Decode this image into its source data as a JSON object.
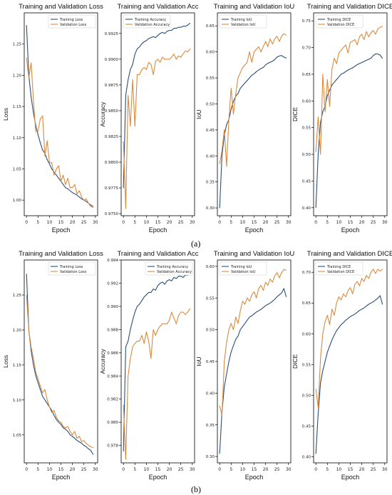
{
  "figure_labels": [
    "(a)",
    "(b)"
  ],
  "colors": {
    "train": "#2b4f7a",
    "val": "#dc8a3c",
    "axis": "#000000"
  },
  "chart_data": [
    {
      "type": "line",
      "row": 0,
      "col": 0,
      "title": "Training and Validation Loss",
      "xlabel": "Epoch",
      "ylabel": "Loss",
      "xlim": [
        -1,
        31
      ],
      "ylim": [
        0.975,
        1.3
      ],
      "xticks": [
        0,
        5,
        10,
        15,
        20,
        25,
        30
      ],
      "yticks": [
        1.0,
        1.05,
        1.1,
        1.15,
        1.2,
        1.25
      ],
      "yticklabels": [
        "1.00",
        "1.05",
        "1.10",
        "1.15",
        "1.20",
        "1.25"
      ],
      "legend": "top-right",
      "x": [
        0,
        1,
        2,
        3,
        4,
        5,
        6,
        7,
        8,
        9,
        10,
        11,
        12,
        13,
        14,
        15,
        16,
        17,
        18,
        19,
        20,
        21,
        22,
        23,
        24,
        25,
        26,
        27,
        28,
        29
      ],
      "series": [
        {
          "name": "Training Loss",
          "values": [
            1.28,
            1.2,
            1.165,
            1.14,
            1.12,
            1.105,
            1.092,
            1.08,
            1.075,
            1.065,
            1.058,
            1.05,
            1.045,
            1.04,
            1.035,
            1.03,
            1.025,
            1.02,
            1.018,
            1.015,
            1.012,
            1.01,
            1.008,
            1.005,
            1.002,
            1.0,
            0.998,
            0.995,
            0.992,
            0.99
          ]
        },
        {
          "name": "Validation Loss",
          "values": [
            1.228,
            1.195,
            1.22,
            1.16,
            1.11,
            1.11,
            1.13,
            1.135,
            1.07,
            1.095,
            1.06,
            1.06,
            1.04,
            1.05,
            1.055,
            1.03,
            1.04,
            1.025,
            1.035,
            1.02,
            1.02,
            1.025,
            1.01,
            1.015,
            1.005,
            1.0,
            1.002,
            0.995,
            0.99,
            0.988
          ]
        }
      ]
    },
    {
      "type": "line",
      "row": 0,
      "col": 1,
      "title": "Training and Validation Acc",
      "xlabel": "Epoch",
      "ylabel": "Accuracy",
      "xlim": [
        -1,
        31
      ],
      "ylim": [
        0.9748,
        0.9945
      ],
      "xticks": [
        0,
        5,
        10,
        15,
        20,
        25,
        30
      ],
      "yticks": [
        0.975,
        0.9775,
        0.98,
        0.9825,
        0.985,
        0.9875,
        0.99,
        0.9925
      ],
      "yticklabels": [
        "0.9750",
        "0.9775",
        "0.9800",
        "0.9825",
        "0.9850",
        "0.9875",
        "0.9900",
        "0.9925"
      ],
      "legend": "top-left",
      "x": [
        0,
        1,
        2,
        3,
        4,
        5,
        6,
        7,
        8,
        9,
        10,
        11,
        12,
        13,
        14,
        15,
        16,
        17,
        18,
        19,
        20,
        21,
        22,
        23,
        24,
        25,
        26,
        27,
        28,
        29
      ],
      "series": [
        {
          "name": "Training Accuracy",
          "values": [
            0.9775,
            0.9865,
            0.988,
            0.989,
            0.9895,
            0.9905,
            0.991,
            0.9912,
            0.9915,
            0.9917,
            0.9918,
            0.992,
            0.9921,
            0.9922,
            0.9921,
            0.9923,
            0.9925,
            0.9926,
            0.9925,
            0.9927,
            0.9928,
            0.9928,
            0.993,
            0.993,
            0.9931,
            0.9931,
            0.9932,
            0.9932,
            0.9933,
            0.9935
          ]
        },
        {
          "name": "Validation Accuracy",
          "values": [
            0.982,
            0.9755,
            0.9865,
            0.9835,
            0.988,
            0.9835,
            0.9885,
            0.9885,
            0.989,
            0.9892,
            0.989,
            0.9897,
            0.9895,
            0.9885,
            0.9898,
            0.99,
            0.9897,
            0.9902,
            0.99,
            0.99,
            0.99,
            0.9902,
            0.9905,
            0.99,
            0.9903,
            0.9902,
            0.9905,
            0.9908,
            0.9907,
            0.991
          ]
        }
      ]
    },
    {
      "type": "line",
      "row": 0,
      "col": 2,
      "title": "Training and Validation IoU",
      "xlabel": "Epoch",
      "ylabel": "IoU",
      "xlim": [
        -1,
        31
      ],
      "ylim": [
        0.285,
        0.675
      ],
      "xticks": [
        0,
        5,
        10,
        15,
        20,
        25,
        30
      ],
      "yticks": [
        0.3,
        0.35,
        0.4,
        0.45,
        0.5,
        0.55,
        0.6,
        0.65
      ],
      "yticklabels": [
        "0.30",
        "0.35",
        "0.40",
        "0.45",
        "0.50",
        "0.55",
        "0.60",
        "0.65"
      ],
      "legend": "top-left",
      "x": [
        0,
        1,
        2,
        3,
        4,
        5,
        6,
        7,
        8,
        9,
        10,
        11,
        12,
        13,
        14,
        15,
        16,
        17,
        18,
        19,
        20,
        21,
        22,
        23,
        24,
        25,
        26,
        27,
        28,
        29
      ],
      "series": [
        {
          "name": "Training IoU",
          "values": [
            0.3,
            0.4,
            0.44,
            0.46,
            0.47,
            0.49,
            0.505,
            0.515,
            0.52,
            0.53,
            0.535,
            0.54,
            0.545,
            0.55,
            0.555,
            0.558,
            0.562,
            0.565,
            0.568,
            0.57,
            0.575,
            0.578,
            0.58,
            0.582,
            0.585,
            0.59,
            0.592,
            0.593,
            0.59,
            0.588
          ]
        },
        {
          "name": "Validation IoU",
          "values": [
            0.385,
            0.41,
            0.45,
            0.38,
            0.47,
            0.53,
            0.48,
            0.52,
            0.55,
            0.56,
            0.57,
            0.575,
            0.58,
            0.6,
            0.58,
            0.6,
            0.605,
            0.61,
            0.6,
            0.61,
            0.62,
            0.61,
            0.625,
            0.615,
            0.625,
            0.63,
            0.62,
            0.63,
            0.635,
            0.632
          ]
        }
      ]
    },
    {
      "type": "line",
      "row": 0,
      "col": 3,
      "title": "Training and Validation DICE",
      "xlabel": "Epoch",
      "ylabel": "DICE",
      "xlim": [
        -1,
        31
      ],
      "ylim": [
        0.385,
        0.765
      ],
      "xticks": [
        0,
        5,
        10,
        15,
        20,
        25,
        30
      ],
      "yticks": [
        0.4,
        0.45,
        0.5,
        0.55,
        0.6,
        0.65,
        0.7,
        0.75
      ],
      "yticklabels": [
        "0.40",
        "0.45",
        "0.50",
        "0.55",
        "0.60",
        "0.65",
        "0.70",
        "0.75"
      ],
      "legend": "top-left",
      "x": [
        0,
        1,
        2,
        3,
        4,
        5,
        6,
        7,
        8,
        9,
        10,
        11,
        12,
        13,
        14,
        15,
        16,
        17,
        18,
        19,
        20,
        21,
        22,
        23,
        24,
        25,
        26,
        27,
        28,
        29
      ],
      "series": [
        {
          "name": "Training DICE",
          "values": [
            0.4,
            0.5,
            0.56,
            0.58,
            0.59,
            0.61,
            0.62,
            0.63,
            0.635,
            0.64,
            0.645,
            0.65,
            0.652,
            0.655,
            0.658,
            0.66,
            0.662,
            0.665,
            0.668,
            0.67,
            0.672,
            0.674,
            0.676,
            0.678,
            0.68,
            0.685,
            0.688,
            0.688,
            0.686,
            0.68
          ]
        },
        {
          "name": "Validation DICE",
          "values": [
            0.505,
            0.57,
            0.5,
            0.65,
            0.58,
            0.64,
            0.59,
            0.66,
            0.68,
            0.67,
            0.69,
            0.695,
            0.7,
            0.705,
            0.69,
            0.71,
            0.712,
            0.715,
            0.705,
            0.72,
            0.725,
            0.715,
            0.73,
            0.72,
            0.728,
            0.732,
            0.725,
            0.735,
            0.738,
            0.74
          ]
        }
      ]
    },
    {
      "type": "line",
      "row": 1,
      "col": 0,
      "title": "Training and Validation Loss",
      "xlabel": "Epoch",
      "ylabel": "Loss",
      "xlim": [
        -1,
        31
      ],
      "ylim": [
        1.01,
        1.3
      ],
      "xticks": [
        0,
        5,
        10,
        15,
        20,
        25,
        30
      ],
      "yticks": [
        1.05,
        1.1,
        1.15,
        1.2,
        1.25
      ],
      "yticklabels": [
        "1.05",
        "1.10",
        "1.15",
        "1.20",
        "1.25"
      ],
      "legend": "top-right",
      "x": [
        0,
        1,
        2,
        3,
        4,
        5,
        6,
        7,
        8,
        9,
        10,
        11,
        12,
        13,
        14,
        15,
        16,
        17,
        18,
        19,
        20,
        21,
        22,
        23,
        24,
        25,
        26,
        27,
        28,
        29
      ],
      "series": [
        {
          "name": "Training Loss",
          "values": [
            1.28,
            1.2,
            1.17,
            1.15,
            1.135,
            1.125,
            1.115,
            1.105,
            1.1,
            1.095,
            1.09,
            1.085,
            1.078,
            1.072,
            1.068,
            1.065,
            1.06,
            1.058,
            1.055,
            1.05,
            1.048,
            1.045,
            1.042,
            1.04,
            1.038,
            1.035,
            1.033,
            1.03,
            1.028,
            1.022
          ]
        },
        {
          "name": "Validation Loss",
          "values": [
            1.25,
            1.2,
            1.175,
            1.16,
            1.14,
            1.13,
            1.12,
            1.11,
            1.115,
            1.1,
            1.09,
            1.082,
            1.085,
            1.075,
            1.07,
            1.068,
            1.062,
            1.06,
            1.062,
            1.055,
            1.05,
            1.055,
            1.045,
            1.048,
            1.04,
            1.042,
            1.038,
            1.035,
            1.033,
            1.032
          ]
        }
      ]
    },
    {
      "type": "line",
      "row": 1,
      "col": 1,
      "title": "Training and Validation Acc",
      "xlabel": "Epoch",
      "ylabel": "Accuracy",
      "xlim": [
        -1,
        31
      ],
      "ylim": [
        0.9765,
        0.994
      ],
      "xticks": [
        0,
        5,
        10,
        15,
        20,
        25,
        30
      ],
      "yticks": [
        0.978,
        0.98,
        0.982,
        0.984,
        0.986,
        0.988,
        0.99,
        0.992,
        0.994
      ],
      "yticklabels": [
        "0.978",
        "0.980",
        "0.982",
        "0.984",
        "0.986",
        "0.988",
        "0.990",
        "0.992",
        "0.994"
      ],
      "legend": "top-right",
      "x": [
        0,
        1,
        2,
        3,
        4,
        5,
        6,
        7,
        8,
        9,
        10,
        11,
        12,
        13,
        14,
        15,
        16,
        17,
        18,
        19,
        20,
        21,
        22,
        23,
        24,
        25,
        26,
        27,
        28,
        29
      ],
      "series": [
        {
          "name": "Training Accuracy",
          "values": [
            0.9775,
            0.9865,
            0.987,
            0.988,
            0.9888,
            0.9895,
            0.99,
            0.9902,
            0.9905,
            0.9908,
            0.991,
            0.9912,
            0.9912,
            0.9915,
            0.9914,
            0.9918,
            0.992,
            0.9921,
            0.9919,
            0.9922,
            0.9923,
            0.9922,
            0.9925,
            0.9924,
            0.9926,
            0.9926,
            0.9925,
            0.9927,
            0.9927,
            0.9928
          ]
        },
        {
          "name": "Validation Accuracy",
          "values": [
            0.9815,
            0.9768,
            0.984,
            0.9855,
            0.9865,
            0.9868,
            0.987,
            0.987,
            0.9875,
            0.9868,
            0.9878,
            0.987,
            0.9855,
            0.988,
            0.9875,
            0.988,
            0.9883,
            0.9885,
            0.9885,
            0.9885,
            0.9888,
            0.9895,
            0.989,
            0.9885,
            0.9892,
            0.9895,
            0.9895,
            0.9893,
            0.9895,
            0.9898
          ]
        }
      ]
    },
    {
      "type": "line",
      "row": 1,
      "col": 2,
      "title": "Training and Validation IoU",
      "xlabel": "Epoch",
      "ylabel": "IoU",
      "xlim": [
        -1,
        31
      ],
      "ylim": [
        0.29,
        0.61
      ],
      "xticks": [
        0,
        5,
        10,
        15,
        20,
        25,
        30
      ],
      "yticks": [
        0.3,
        0.35,
        0.4,
        0.45,
        0.5,
        0.55,
        0.6
      ],
      "yticklabels": [
        "0.30",
        "0.35",
        "0.40",
        "0.45",
        "0.50",
        "0.55",
        "0.60"
      ],
      "legend": "top-left",
      "x": [
        0,
        1,
        2,
        3,
        4,
        5,
        6,
        7,
        8,
        9,
        10,
        11,
        12,
        13,
        14,
        15,
        16,
        17,
        18,
        19,
        20,
        21,
        22,
        23,
        24,
        25,
        26,
        27,
        28,
        29
      ],
      "series": [
        {
          "name": "Training IoU",
          "values": [
            0.305,
            0.37,
            0.41,
            0.43,
            0.45,
            0.465,
            0.475,
            0.485,
            0.49,
            0.5,
            0.505,
            0.51,
            0.515,
            0.52,
            0.522,
            0.525,
            0.528,
            0.53,
            0.532,
            0.535,
            0.538,
            0.54,
            0.542,
            0.545,
            0.548,
            0.552,
            0.555,
            0.558,
            0.565,
            0.552
          ]
        },
        {
          "name": "Validation IoU",
          "values": [
            0.38,
            0.365,
            0.45,
            0.48,
            0.5,
            0.51,
            0.5,
            0.52,
            0.51,
            0.53,
            0.545,
            0.54,
            0.55,
            0.545,
            0.555,
            0.56,
            0.55,
            0.565,
            0.57,
            0.562,
            0.575,
            0.57,
            0.58,
            0.575,
            0.585,
            0.59,
            0.582,
            0.59,
            0.595,
            0.594
          ]
        }
      ]
    },
    {
      "type": "line",
      "row": 1,
      "col": 3,
      "title": "Training and Validation DICE",
      "xlabel": "Epoch",
      "ylabel": "DICE",
      "xlim": [
        -1,
        31
      ],
      "ylim": [
        0.39,
        0.72
      ],
      "xticks": [
        0,
        5,
        10,
        15,
        20,
        25,
        30
      ],
      "yticks": [
        0.4,
        0.45,
        0.5,
        0.55,
        0.6,
        0.65,
        0.7
      ],
      "yticklabels": [
        "0.40",
        "0.45",
        "0.50",
        "0.55",
        "0.60",
        "0.65",
        "0.70"
      ],
      "legend": "top-left",
      "x": [
        0,
        1,
        2,
        3,
        4,
        5,
        6,
        7,
        8,
        9,
        10,
        11,
        12,
        13,
        14,
        15,
        16,
        17,
        18,
        19,
        20,
        21,
        22,
        23,
        24,
        25,
        26,
        27,
        28,
        29
      ],
      "series": [
        {
          "name": "Training DICE",
          "values": [
            0.405,
            0.47,
            0.52,
            0.54,
            0.555,
            0.57,
            0.58,
            0.59,
            0.598,
            0.605,
            0.61,
            0.615,
            0.618,
            0.622,
            0.625,
            0.628,
            0.63,
            0.632,
            0.635,
            0.638,
            0.64,
            0.642,
            0.645,
            0.648,
            0.65,
            0.652,
            0.655,
            0.658,
            0.662,
            0.648
          ]
        },
        {
          "name": "Validation DICE",
          "values": [
            0.51,
            0.48,
            0.56,
            0.6,
            0.62,
            0.63,
            0.615,
            0.64,
            0.63,
            0.65,
            0.66,
            0.655,
            0.665,
            0.66,
            0.67,
            0.675,
            0.665,
            0.68,
            0.685,
            0.678,
            0.69,
            0.685,
            0.695,
            0.69,
            0.7,
            0.705,
            0.698,
            0.705,
            0.702,
            0.705
          ]
        }
      ]
    }
  ]
}
